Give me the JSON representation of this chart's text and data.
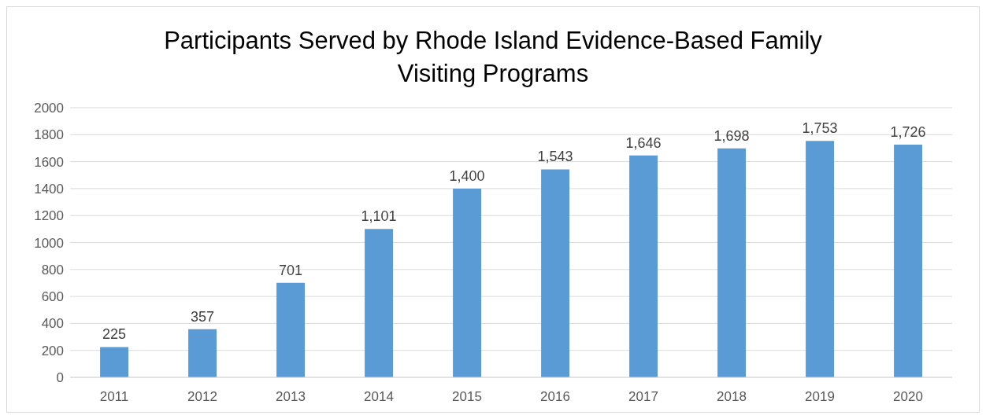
{
  "chart_data": {
    "type": "bar",
    "title": "Participants Served by Rhode Island Evidence-Based Family Visiting Programs",
    "categories": [
      "2011",
      "2012",
      "2013",
      "2014",
      "2015",
      "2016",
      "2017",
      "2018",
      "2019",
      "2020"
    ],
    "values": [
      225,
      357,
      701,
      1101,
      1400,
      1543,
      1646,
      1698,
      1753,
      1726
    ],
    "value_labels": [
      "225",
      "357",
      "701",
      "1,101",
      "1,400",
      "1,543",
      "1,646",
      "1,698",
      "1,753",
      "1,726"
    ],
    "color": "#5b9bd5",
    "ylim": [
      0,
      2000
    ],
    "yticks": [
      0,
      200,
      400,
      600,
      800,
      1000,
      1200,
      1400,
      1600,
      1800,
      2000
    ],
    "grid": "y",
    "legend": false
  }
}
